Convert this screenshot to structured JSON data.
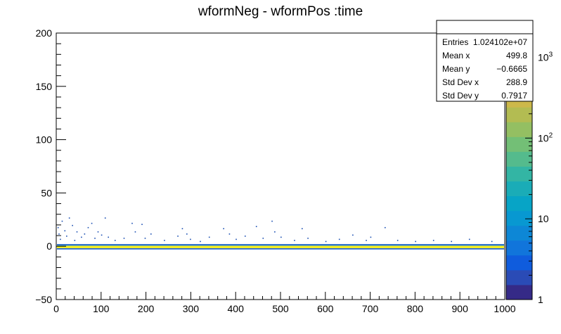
{
  "chart_data": {
    "type": "heatmap",
    "title": "wformNeg - wformPos :time",
    "xlabel": "",
    "ylabel": "",
    "xlim": [
      0,
      1000
    ],
    "ylim": [
      -50,
      200
    ],
    "x_ticks": [
      "0",
      "100",
      "200",
      "300",
      "400",
      "500",
      "600",
      "700",
      "800",
      "900",
      "1000"
    ],
    "y_ticks": [
      "−50",
      "0",
      "50",
      "100",
      "150",
      "200"
    ],
    "colorbar": {
      "scale": "log",
      "min": 1,
      "max": 2000,
      "tick_labels": [
        {
          "value": 1,
          "base": "1",
          "exp": ""
        },
        {
          "value": 10,
          "base": "10",
          "exp": ""
        },
        {
          "value": 100,
          "base": "10",
          "exp": "2"
        },
        {
          "value": 1000,
          "base": "10",
          "exp": "3"
        }
      ],
      "colors": [
        "#352a87",
        "#2a4bb6",
        "#0f5cdd",
        "#1175db",
        "#0d87d6",
        "#0898d1",
        "#07a4c6",
        "#1aacb7",
        "#33b5a4",
        "#54bb8d",
        "#73bf76",
        "#94bf62",
        "#b3bc52",
        "#cdb84a",
        "#e4b63d",
        "#f1c12e",
        "#f8d625",
        "#f9fb0e"
      ]
    },
    "core_band": {
      "y_min": -3,
      "y_max": 2,
      "y_peak": -0.7
    },
    "scatter_spikes": [
      {
        "x": 3,
        "y": 18
      },
      {
        "x": 5,
        "y": 12
      },
      {
        "x": 8,
        "y": 7
      },
      {
        "x": 12,
        "y": 24
      },
      {
        "x": 18,
        "y": 15
      },
      {
        "x": 22,
        "y": 10
      },
      {
        "x": 28,
        "y": 27
      },
      {
        "x": 35,
        "y": 20
      },
      {
        "x": 40,
        "y": 6
      },
      {
        "x": 45,
        "y": 14
      },
      {
        "x": 55,
        "y": 9
      },
      {
        "x": 62,
        "y": 12
      },
      {
        "x": 70,
        "y": 18
      },
      {
        "x": 78,
        "y": 22
      },
      {
        "x": 85,
        "y": 8
      },
      {
        "x": 92,
        "y": 14
      },
      {
        "x": 100,
        "y": 11
      },
      {
        "x": 108,
        "y": 27
      },
      {
        "x": 115,
        "y": 9
      },
      {
        "x": 130,
        "y": 6
      },
      {
        "x": 150,
        "y": 8
      },
      {
        "x": 168,
        "y": 22
      },
      {
        "x": 175,
        "y": 14
      },
      {
        "x": 190,
        "y": 21
      },
      {
        "x": 197,
        "y": 8
      },
      {
        "x": 210,
        "y": 12
      },
      {
        "x": 240,
        "y": 6
      },
      {
        "x": 270,
        "y": 10
      },
      {
        "x": 280,
        "y": 17
      },
      {
        "x": 290,
        "y": 12
      },
      {
        "x": 298,
        "y": 7
      },
      {
        "x": 320,
        "y": 5
      },
      {
        "x": 340,
        "y": 9
      },
      {
        "x": 372,
        "y": 17
      },
      {
        "x": 385,
        "y": 12
      },
      {
        "x": 400,
        "y": 7
      },
      {
        "x": 420,
        "y": 10
      },
      {
        "x": 445,
        "y": 19
      },
      {
        "x": 460,
        "y": 8
      },
      {
        "x": 480,
        "y": 24
      },
      {
        "x": 486,
        "y": 14
      },
      {
        "x": 500,
        "y": 9
      },
      {
        "x": 530,
        "y": 6
      },
      {
        "x": 547,
        "y": 17
      },
      {
        "x": 560,
        "y": 8
      },
      {
        "x": 600,
        "y": 5
      },
      {
        "x": 630,
        "y": 7
      },
      {
        "x": 660,
        "y": 11
      },
      {
        "x": 690,
        "y": 6
      },
      {
        "x": 700,
        "y": 9
      },
      {
        "x": 732,
        "y": 18
      },
      {
        "x": 760,
        "y": 6
      },
      {
        "x": 800,
        "y": 5
      },
      {
        "x": 840,
        "y": 6
      },
      {
        "x": 880,
        "y": 5
      },
      {
        "x": 920,
        "y": 7
      },
      {
        "x": 970,
        "y": 5
      }
    ],
    "stats": {
      "header": "",
      "rows": [
        {
          "label": "Entries",
          "value": "1.024102e+07"
        },
        {
          "label": "Mean x",
          "value": "499.8"
        },
        {
          "label": "Mean y",
          "value": "−0.6665"
        },
        {
          "label": "Std Dev x",
          "value": "288.9"
        },
        {
          "label": "Std Dev y",
          "value": "0.7917"
        }
      ]
    }
  }
}
